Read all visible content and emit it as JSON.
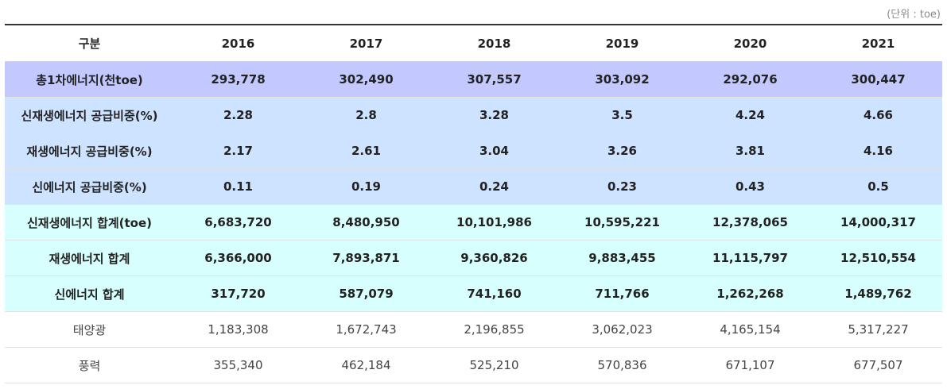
{
  "unit_note": "(단위 : toe)",
  "header": [
    "구분",
    "2016",
    "2017",
    "2018",
    "2019",
    "2020",
    "2021"
  ],
  "rows": [
    {
      "label": "총1차에너지(천toe)",
      "values": [
        "293,778",
        "302,490",
        "307,557",
        "303,092",
        "292,076",
        "300,447"
      ]
    },
    {
      "label": "신재생에너지 공급비중(%)",
      "values": [
        "2.28",
        "2.8",
        "3.28",
        "3.5",
        "4.24",
        "4.66"
      ]
    },
    {
      "label": "재생에너지 공급비중(%)",
      "values": [
        "2.17",
        "2.61",
        "3.04",
        "3.26",
        "3.81",
        "4.16"
      ]
    },
    {
      "label": "신에너지 공급비중(%)",
      "values": [
        "0.11",
        "0.19",
        "0.24",
        "0.23",
        "0.43",
        "0.5"
      ]
    },
    {
      "label": "신재생에너지 합계(toe)",
      "values": [
        "6,683,720",
        "8,480,950",
        "10,101,986",
        "10,595,221",
        "12,378,065",
        "14,000,317"
      ]
    },
    {
      "label": "재생에너지 합계",
      "values": [
        "6,366,000",
        "7,893,871",
        "9,360,826",
        "9,883,455",
        "11,115,797",
        "12,510,554"
      ]
    },
    {
      "label": "신에너지 합계",
      "values": [
        "317,720",
        "587,079",
        "741,160",
        "711,766",
        "1,262,268",
        "1,489,762"
      ]
    },
    {
      "label": "태양광",
      "values": [
        "1,183,308",
        "1,672,743",
        "2,196,855",
        "3,062,023",
        "4,165,154",
        "5,317,227"
      ]
    },
    {
      "label": "풍력",
      "values": [
        "355,340",
        "462,184",
        "525,210",
        "570,836",
        "671,107",
        "677,507"
      ]
    }
  ],
  "colors": {
    "header_border": "#333333",
    "primary_energy_row": "#c3c9ff",
    "share_rows": "#cde3ff",
    "total_rows": "#d6fffd",
    "detail_rows": "#ffffff"
  }
}
